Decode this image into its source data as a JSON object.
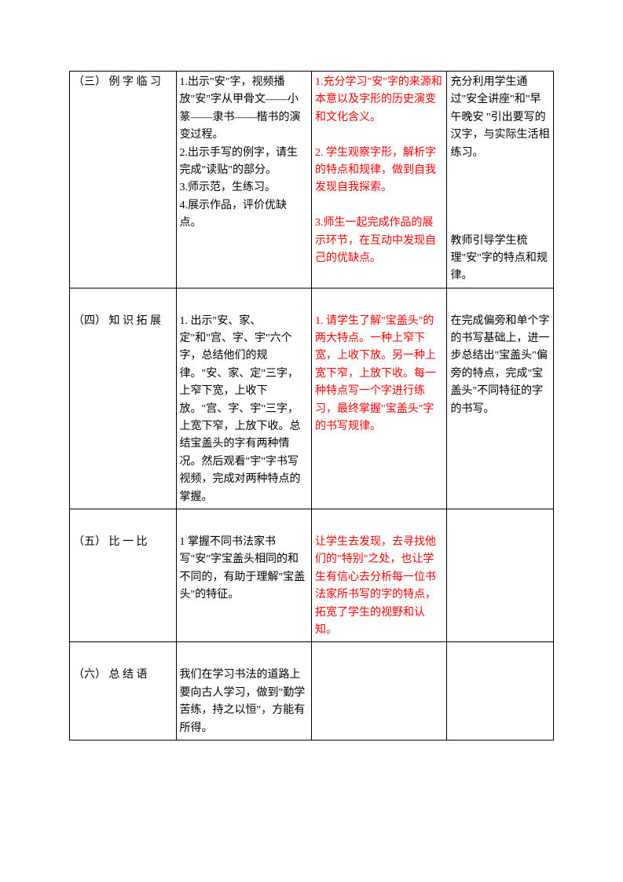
{
  "rows": [
    {
      "col1": "（三） 例 字 临 习",
      "col1_class": "section-header-first",
      "col2": "1.出示\"安\"字，视频播放\"安\"字从甲骨文——小篆——隶书——楷书的演变过程。\n2.出示手写的例字，请生完成\"读贴\"的部分。\n3.师示范，生练习。\n4.展示作品，评价优缺点。",
      "col3": "1.充分学习\"安\"字的来源和本意以及字形的历史演变和文化含义。\n\n2. 学生观察字形，解析字的特点和规律，做到自我发现自我探索。\n\n3.师生一起完成作品的展示环节，在互动中发现自己的优缺点。",
      "col4": "充分利用学生通过\"安全讲座\"和\"早午晚安 \"引出要写的汉字，与实际生活相练习。\n\n\n\n\n教师引导学生梳理\"安\"字的特点和规律。"
    },
    {
      "col1": "（四） 知 识 拓 展",
      "col1_class": "section-header",
      "col2": "1. 出示\"安、家、定\"和\"宫、字、宇\"六个字，总结他们的规律。\"安、家、定\"三字，上窄下宽，上收下放。\"宫、字、宇\"三字，上宽下窄，上放下收。总结宝盖头的字有两种情况。然后观看\"宇\"字书写视频，完成对两种特点的掌握。",
      "col3": "1. 请学生了解\"宝盖头\"的两大特点。一种上窄下宽，上收下放。另一种上宽下窄，上放下收。每一种特点写一个字进行练习，最终掌握\"宝盖头\"字的书写规律。",
      "col4": "在完成偏旁和单个字的书写基础上，进一步总结出\"宝盖头\"偏旁的特点，完成\"宝盖头\"不同特征的字的书写。"
    },
    {
      "col1": "（五） 比 一 比",
      "col1_class": "section-header",
      "col2": "1 掌握不同书法家书写\"安\"字宝盖头相同的和不同的，有助于理解\"宝盖头\"的特征。",
      "col3": "让学生去发现，去寻找他们的\"特别\"之处，也让学生有信心去分析每一位书法家所书写的字的特点，拓宽了学生的视野和认知。",
      "col4": ""
    },
    {
      "col1": "（六） 总 结 语",
      "col1_class": "section-header",
      "col2": "我们在学习书法的道路上要向古人学习，做到\"勤学苦练，持之以恒\"，方能有所得。",
      "col3": "",
      "col4": ""
    }
  ]
}
